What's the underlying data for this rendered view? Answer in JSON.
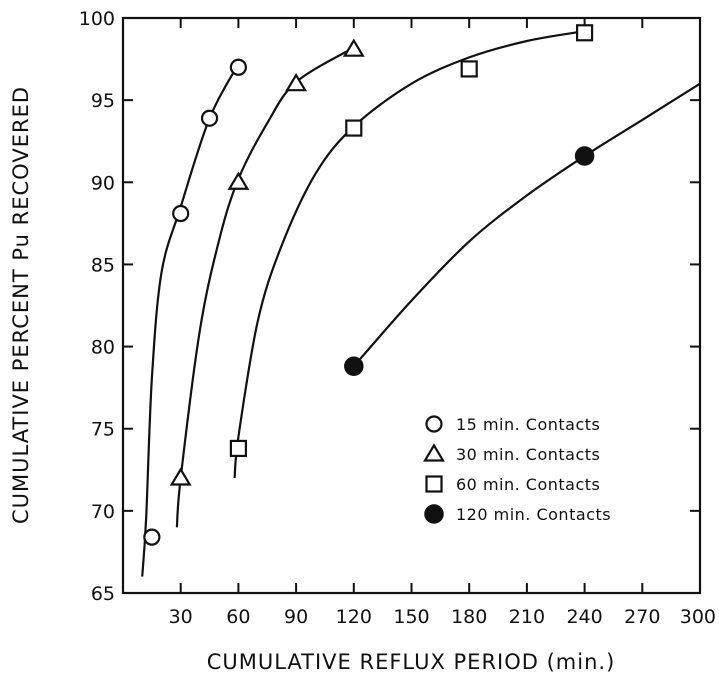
{
  "chart_data": {
    "type": "scatter",
    "title": "",
    "xlabel": "CUMULATIVE REFLUX PERIOD (min.)",
    "ylabel": "CUMULATIVE PERCENT Pu RECOVERED",
    "xlim": [
      0,
      300
    ],
    "ylim": [
      65,
      100
    ],
    "xticks": [
      30,
      60,
      90,
      120,
      150,
      180,
      210,
      240,
      270,
      300
    ],
    "yticks": [
      65,
      70,
      75,
      80,
      85,
      90,
      95,
      100
    ],
    "grid": false,
    "legend_position": "lower-right",
    "series": [
      {
        "name": "15 min. Contacts",
        "marker": "open-circle",
        "x": [
          15,
          30,
          45,
          60
        ],
        "y": [
          68.4,
          88.1,
          93.9,
          97.0
        ],
        "curve": [
          [
            10,
            66
          ],
          [
            12,
            69.5
          ],
          [
            15,
            78
          ],
          [
            20,
            84.5
          ],
          [
            30,
            88.5
          ],
          [
            45,
            93.9
          ],
          [
            60,
            97.2
          ]
        ]
      },
      {
        "name": "30 min. Contacts",
        "marker": "open-triangle",
        "x": [
          30,
          60,
          90,
          120
        ],
        "y": [
          72.0,
          90.0,
          96.0,
          98.1
        ],
        "curve": [
          [
            28,
            69
          ],
          [
            30,
            72
          ],
          [
            40,
            81
          ],
          [
            50,
            86.5
          ],
          [
            60,
            90.2
          ],
          [
            75,
            93.6
          ],
          [
            90,
            96.1
          ],
          [
            120,
            98.2
          ]
        ]
      },
      {
        "name": "60 min. Contacts",
        "marker": "open-square",
        "x": [
          60,
          120,
          180,
          240
        ],
        "y": [
          73.8,
          93.3,
          96.9,
          99.1
        ],
        "curve": [
          [
            58,
            72
          ],
          [
            60,
            74.5
          ],
          [
            70,
            81.5
          ],
          [
            82,
            86
          ],
          [
            100,
            90.5
          ],
          [
            120,
            93.4
          ],
          [
            150,
            96
          ],
          [
            180,
            97.6
          ],
          [
            210,
            98.6
          ],
          [
            240,
            99.2
          ]
        ]
      },
      {
        "name": "120 min. Contacts",
        "marker": "filled-circle",
        "x": [
          120,
          240
        ],
        "y": [
          78.8,
          91.6
        ],
        "curve": [
          [
            120,
            78.8
          ],
          [
            150,
            82.8
          ],
          [
            180,
            86.4
          ],
          [
            210,
            89.2
          ],
          [
            240,
            91.6
          ],
          [
            270,
            93.8
          ],
          [
            300,
            96.0
          ]
        ]
      }
    ]
  }
}
